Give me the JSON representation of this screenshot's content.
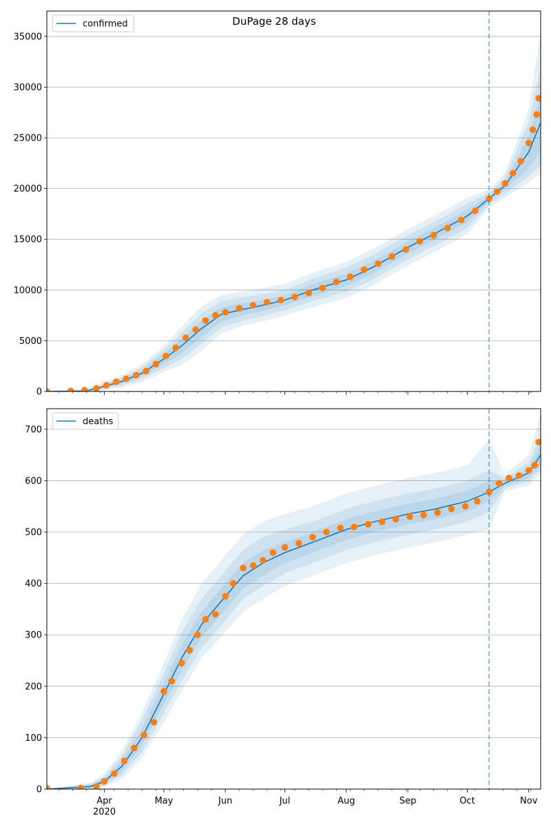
{
  "figure_title": "DuPage 28 days",
  "colors": {
    "model_line": "#1f77b4",
    "observed": "#ff7f0e",
    "band_fill": "#1f77b4",
    "cutoff": "#1f77b4",
    "grid": "#b0b0b0"
  },
  "chart_data": [
    {
      "type": "line",
      "name": "confirmed-panel",
      "title": "DuPage 28 days",
      "legend": [
        "confirmed"
      ],
      "legend_placement": "top-left",
      "grid": "horizontal",
      "x_domain": [
        "2020-03-03",
        "2020-11-07"
      ],
      "ylim": [
        0,
        37500
      ],
      "y_ticks": [
        0,
        5000,
        10000,
        15000,
        20000,
        25000,
        30000,
        35000
      ],
      "cutoff_date": "2020-10-12",
      "model": {
        "x": [
          "2020-03-03",
          "2020-03-20",
          "2020-03-25",
          "2020-04-01",
          "2020-04-10",
          "2020-04-20",
          "2020-05-01",
          "2020-05-10",
          "2020-05-20",
          "2020-05-30",
          "2020-06-10",
          "2020-06-20",
          "2020-07-01",
          "2020-07-15",
          "2020-08-01",
          "2020-08-15",
          "2020-09-01",
          "2020-09-15",
          "2020-10-01",
          "2020-10-12",
          "2020-10-20",
          "2020-11-01",
          "2020-11-07"
        ],
        "y": [
          0,
          50,
          150,
          500,
          1000,
          1800,
          3200,
          4500,
          6200,
          7600,
          8100,
          8500,
          9000,
          10000,
          11000,
          12300,
          14200,
          15600,
          17300,
          19000,
          20300,
          23600,
          26500
        ],
        "bands": [
          {
            "lo": [
              0,
              30,
              100,
              350,
              800,
              1500,
              2700,
              3800,
              5400,
              6900,
              7500,
              7950,
              8500,
              9400,
              10400,
              11700,
              13600,
              15000,
              16700,
              18700,
              19900,
              22000,
              23700
            ],
            "hi": [
              0,
              70,
              200,
              650,
              1250,
              2100,
              3700,
              5200,
              7000,
              8300,
              8700,
              9000,
              9500,
              10600,
              11600,
              12900,
              14800,
              16200,
              17900,
              19300,
              20700,
              25200,
              29300
            ]
          },
          {
            "lo": [
              0,
              20,
              70,
              250,
              600,
              1200,
              2300,
              3200,
              4700,
              6300,
              7000,
              7450,
              8000,
              8900,
              9800,
              11100,
              13000,
              14400,
              16100,
              18400,
              19500,
              21200,
              22400
            ],
            "hi": [
              0,
              80,
              250,
              800,
              1450,
              2400,
              4100,
              5800,
              7700,
              8900,
              9300,
              9600,
              10000,
              11100,
              12200,
              13500,
              15400,
              16800,
              18500,
              19600,
              21100,
              26600,
              32000
            ]
          },
          {
            "lo": [
              0,
              10,
              40,
              150,
              400,
              900,
              1900,
              2600,
              4000,
              5700,
              6500,
              6900,
              7500,
              8300,
              9200,
              10500,
              12400,
              13800,
              15500,
              18100,
              19100,
              20600,
              21500
            ],
            "hi": [
              0,
              90,
              300,
              950,
              1650,
              2700,
              4500,
              6400,
              8400,
              9500,
              9900,
              10200,
              10600,
              11700,
              12800,
              14100,
              16000,
              17400,
              19100,
              19900,
              21500,
              27800,
              35500
            ]
          }
        ]
      },
      "observed": {
        "x": [
          "2020-03-03",
          "2020-03-15",
          "2020-03-22",
          "2020-03-28",
          "2020-04-02",
          "2020-04-07",
          "2020-04-12",
          "2020-04-17",
          "2020-04-22",
          "2020-04-27",
          "2020-05-02",
          "2020-05-07",
          "2020-05-12",
          "2020-05-17",
          "2020-05-22",
          "2020-05-27",
          "2020-06-01",
          "2020-06-08",
          "2020-06-15",
          "2020-06-22",
          "2020-06-29",
          "2020-07-06",
          "2020-07-13",
          "2020-07-20",
          "2020-07-27",
          "2020-08-03",
          "2020-08-10",
          "2020-08-17",
          "2020-08-24",
          "2020-08-31",
          "2020-09-07",
          "2020-09-14",
          "2020-09-21",
          "2020-09-28",
          "2020-10-05",
          "2020-10-12",
          "2020-10-16",
          "2020-10-20",
          "2020-10-24",
          "2020-10-28",
          "2020-11-01",
          "2020-11-03",
          "2020-11-05",
          "2020-11-06"
        ],
        "y": [
          10,
          50,
          120,
          300,
          600,
          950,
          1250,
          1600,
          2000,
          2700,
          3500,
          4300,
          5300,
          6100,
          7000,
          7500,
          7800,
          8200,
          8500,
          8800,
          9000,
          9300,
          9700,
          10200,
          10800,
          11300,
          12000,
          12600,
          13300,
          14000,
          14800,
          15400,
          16100,
          16900,
          17800,
          19000,
          19700,
          20500,
          21500,
          22700,
          24500,
          25800,
          27300,
          28900
        ]
      }
    },
    {
      "type": "line",
      "name": "deaths-panel",
      "legend": [
        "deaths"
      ],
      "legend_placement": "top-left",
      "grid": "horizontal",
      "x_domain": [
        "2020-03-03",
        "2020-11-07"
      ],
      "ylim": [
        0,
        740
      ],
      "y_ticks": [
        0,
        100,
        200,
        300,
        400,
        500,
        600,
        700
      ],
      "x_ticks": [
        "2020-04-01",
        "2020-05-01",
        "2020-06-01",
        "2020-07-01",
        "2020-08-01",
        "2020-09-01",
        "2020-10-01",
        "2020-11-01"
      ],
      "x_tick_labels": [
        "Apr",
        "May",
        "Jun",
        "Jul",
        "Aug",
        "Sep",
        "Oct",
        "Nov"
      ],
      "x_year_label": "2020",
      "cutoff_date": "2020-10-12",
      "model": {
        "x": [
          "2020-03-03",
          "2020-03-25",
          "2020-04-01",
          "2020-04-10",
          "2020-04-20",
          "2020-05-01",
          "2020-05-10",
          "2020-05-20",
          "2020-06-01",
          "2020-06-10",
          "2020-06-20",
          "2020-07-01",
          "2020-07-15",
          "2020-08-01",
          "2020-08-15",
          "2020-09-01",
          "2020-09-15",
          "2020-10-01",
          "2020-10-12",
          "2020-10-20",
          "2020-11-01",
          "2020-11-07"
        ],
        "y": [
          0,
          5,
          15,
          45,
          100,
          185,
          255,
          320,
          375,
          415,
          440,
          460,
          480,
          505,
          520,
          535,
          545,
          560,
          578,
          595,
          615,
          650
        ],
        "bands": [
          {
            "lo": [
              0,
              2,
              10,
              35,
              85,
              165,
              230,
              295,
              350,
              390,
              415,
              440,
              460,
              485,
              500,
              515,
              525,
              540,
              560,
              590,
              605,
              632
            ],
            "hi": [
              0,
              8,
              20,
              55,
              118,
              205,
              280,
              345,
              400,
              440,
              465,
              480,
              500,
              525,
              540,
              555,
              565,
              580,
              600,
              600,
              625,
              668
            ]
          },
          {
            "lo": [
              0,
              1,
              7,
              28,
              72,
              148,
              210,
              275,
              328,
              370,
              395,
              420,
              440,
              465,
              480,
              495,
              505,
              520,
              540,
              585,
              598,
              622
            ],
            "hi": [
              0,
              10,
              25,
              65,
              135,
              225,
              305,
              370,
              425,
              465,
              490,
              505,
              520,
              545,
              560,
              575,
              585,
              600,
              620,
              605,
              635,
              688
            ]
          },
          {
            "lo": [
              0,
              0,
              4,
              20,
              60,
              130,
              190,
              255,
              305,
              345,
              370,
              395,
              415,
              440,
              455,
              470,
              480,
              495,
              505,
              580,
              590,
              612
            ],
            "hi": [
              0,
              12,
              30,
              75,
              150,
              245,
              330,
              400,
              455,
              495,
              520,
              535,
              550,
              575,
              590,
              605,
              615,
              630,
              680,
              612,
              650,
              730
            ]
          }
        ]
      },
      "observed": {
        "x": [
          "2020-03-03",
          "2020-03-20",
          "2020-03-28",
          "2020-04-01",
          "2020-04-06",
          "2020-04-11",
          "2020-04-16",
          "2020-04-21",
          "2020-04-26",
          "2020-05-01",
          "2020-05-05",
          "2020-05-10",
          "2020-05-14",
          "2020-05-18",
          "2020-05-22",
          "2020-05-27",
          "2020-06-01",
          "2020-06-05",
          "2020-06-10",
          "2020-06-15",
          "2020-06-20",
          "2020-06-25",
          "2020-07-01",
          "2020-07-08",
          "2020-07-15",
          "2020-07-22",
          "2020-07-29",
          "2020-08-05",
          "2020-08-12",
          "2020-08-19",
          "2020-08-26",
          "2020-09-02",
          "2020-09-09",
          "2020-09-16",
          "2020-09-23",
          "2020-09-30",
          "2020-10-06",
          "2020-10-12",
          "2020-10-17",
          "2020-10-22",
          "2020-10-27",
          "2020-11-01",
          "2020-11-04",
          "2020-11-06"
        ],
        "y": [
          2,
          2,
          5,
          15,
          30,
          55,
          80,
          105,
          130,
          190,
          210,
          245,
          270,
          300,
          330,
          340,
          375,
          400,
          430,
          435,
          445,
          460,
          470,
          478,
          490,
          500,
          508,
          510,
          515,
          520,
          525,
          530,
          533,
          538,
          545,
          550,
          560,
          578,
          595,
          605,
          610,
          620,
          630,
          675
        ]
      }
    }
  ]
}
